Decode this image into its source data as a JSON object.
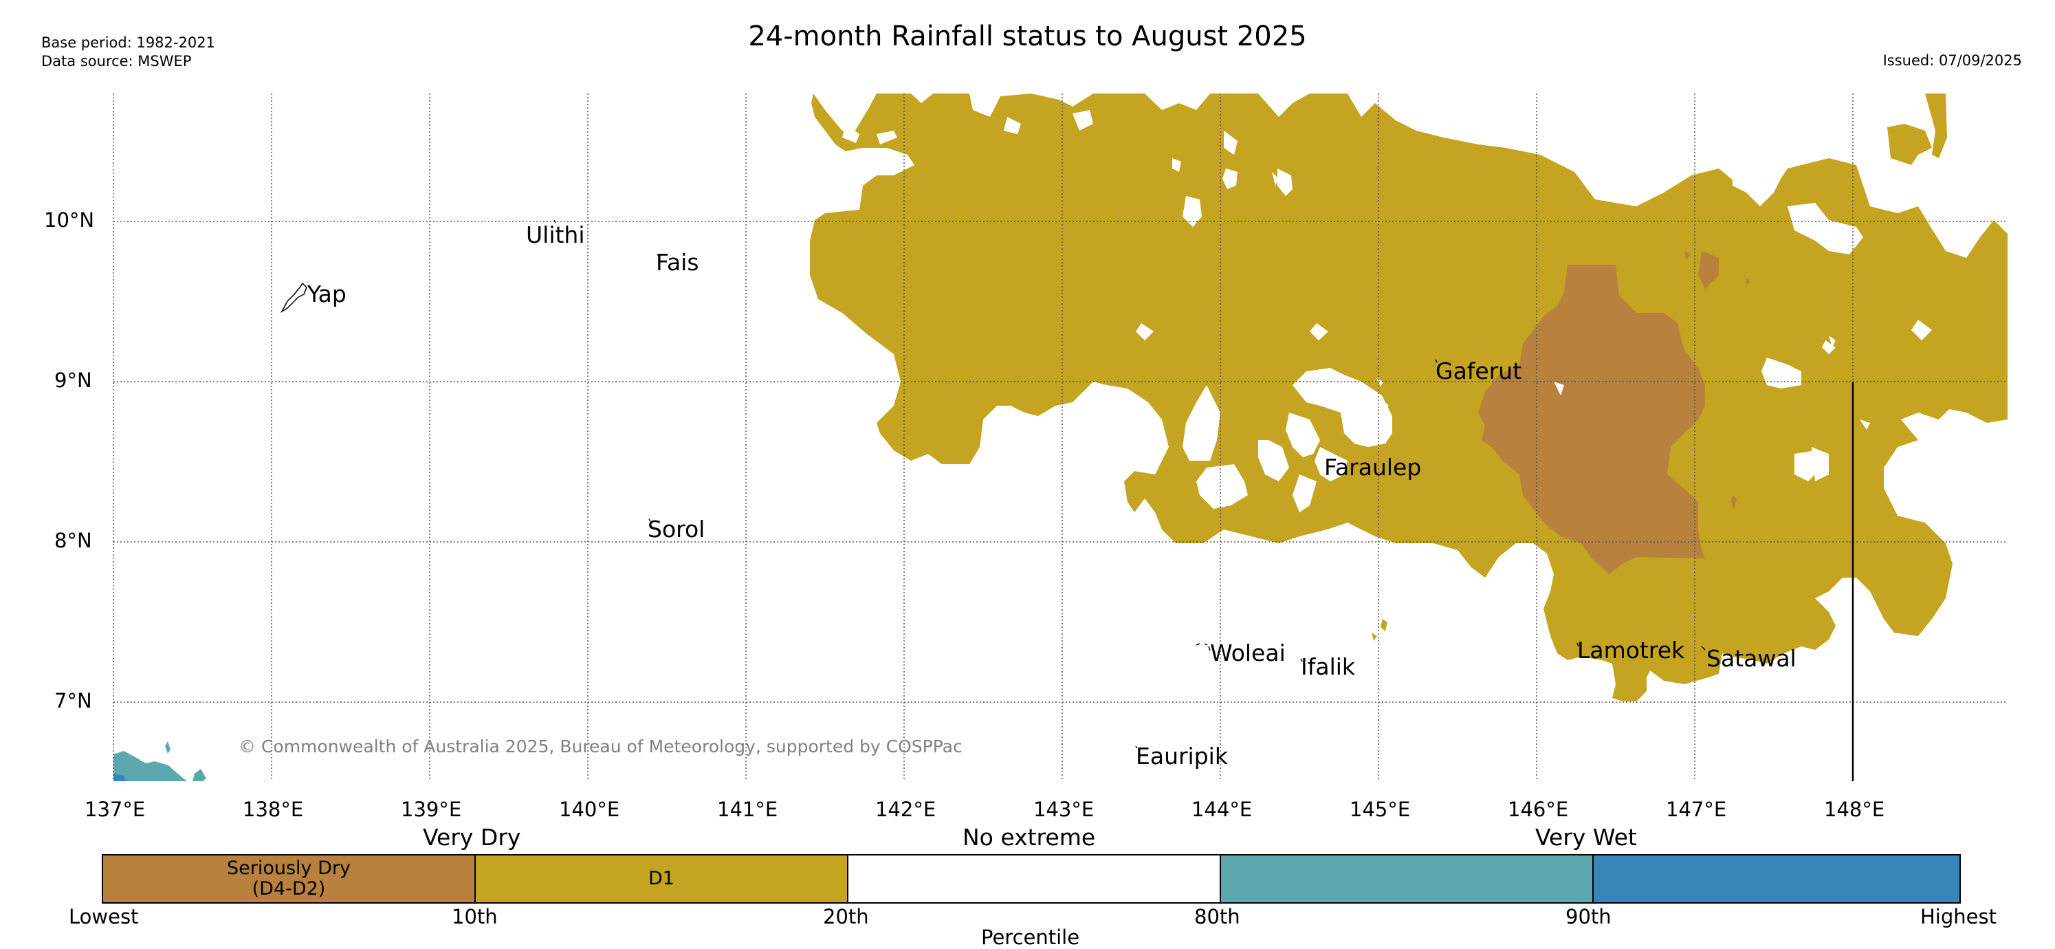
{
  "header": {
    "base_period": "Base period: 1982-2021",
    "data_source": "Data source: MSWEP",
    "title": "24-month Rainfall status to August 2025",
    "issued": "Issued: 07/09/2025"
  },
  "map": {
    "lon_ticks": [
      "137°E",
      "138°E",
      "139°E",
      "140°E",
      "141°E",
      "142°E",
      "143°E",
      "144°E",
      "145°E",
      "146°E",
      "147°E",
      "148°E"
    ],
    "lat_ticks": [
      "10°N",
      "9°N",
      "8°N",
      "7°N"
    ],
    "places": [
      {
        "name": "Yap",
        "lon": 138.1,
        "lat": 9.53
      },
      {
        "name": "Ulithi",
        "lon": 139.72,
        "lat": 10.0
      },
      {
        "name": "Fais",
        "lon": 140.52,
        "lat": 9.77
      },
      {
        "name": "Sorol",
        "lon": 140.39,
        "lat": 8.14
      },
      {
        "name": "Gaferut",
        "lon": 145.38,
        "lat": 9.23
      },
      {
        "name": "Faraulep",
        "lon": 144.52,
        "lat": 8.59
      },
      {
        "name": "Woleai",
        "lon": 143.9,
        "lat": 7.37
      },
      {
        "name": "Ifalik",
        "lon": 144.45,
        "lat": 7.25
      },
      {
        "name": "Lamotrek",
        "lon": 146.33,
        "lat": 7.5
      },
      {
        "name": "Satawal",
        "lon": 147.03,
        "lat": 7.37
      },
      {
        "name": "Eauripik",
        "lon": 143.05,
        "lat": 6.69
      }
    ],
    "copyright": "© Commonwealth of Australia 2025, Bureau of Meteorology, supported by COSPPac"
  },
  "colors": {
    "seriously_dry": "#b8813d",
    "d1": "#c4a420",
    "no_extreme": "#ffffff",
    "wet": "#5ca8ae",
    "very_wet": "#3686b9",
    "grid": "#555555"
  },
  "legend": {
    "categories": [
      "Very Dry",
      "No extreme",
      "Very Wet"
    ],
    "boxes": [
      {
        "label_line1": "Seriously Dry",
        "label_line2": "(D4-D2)"
      },
      {
        "label_line1": "D1",
        "label_line2": ""
      },
      {
        "label_line1": "",
        "label_line2": ""
      },
      {
        "label_line1": "",
        "label_line2": ""
      },
      {
        "label_line1": "",
        "label_line2": ""
      }
    ],
    "ticks": [
      "Lowest",
      "10th",
      "20th",
      "80th",
      "90th",
      "Highest"
    ],
    "axis_title": "Percentile"
  }
}
